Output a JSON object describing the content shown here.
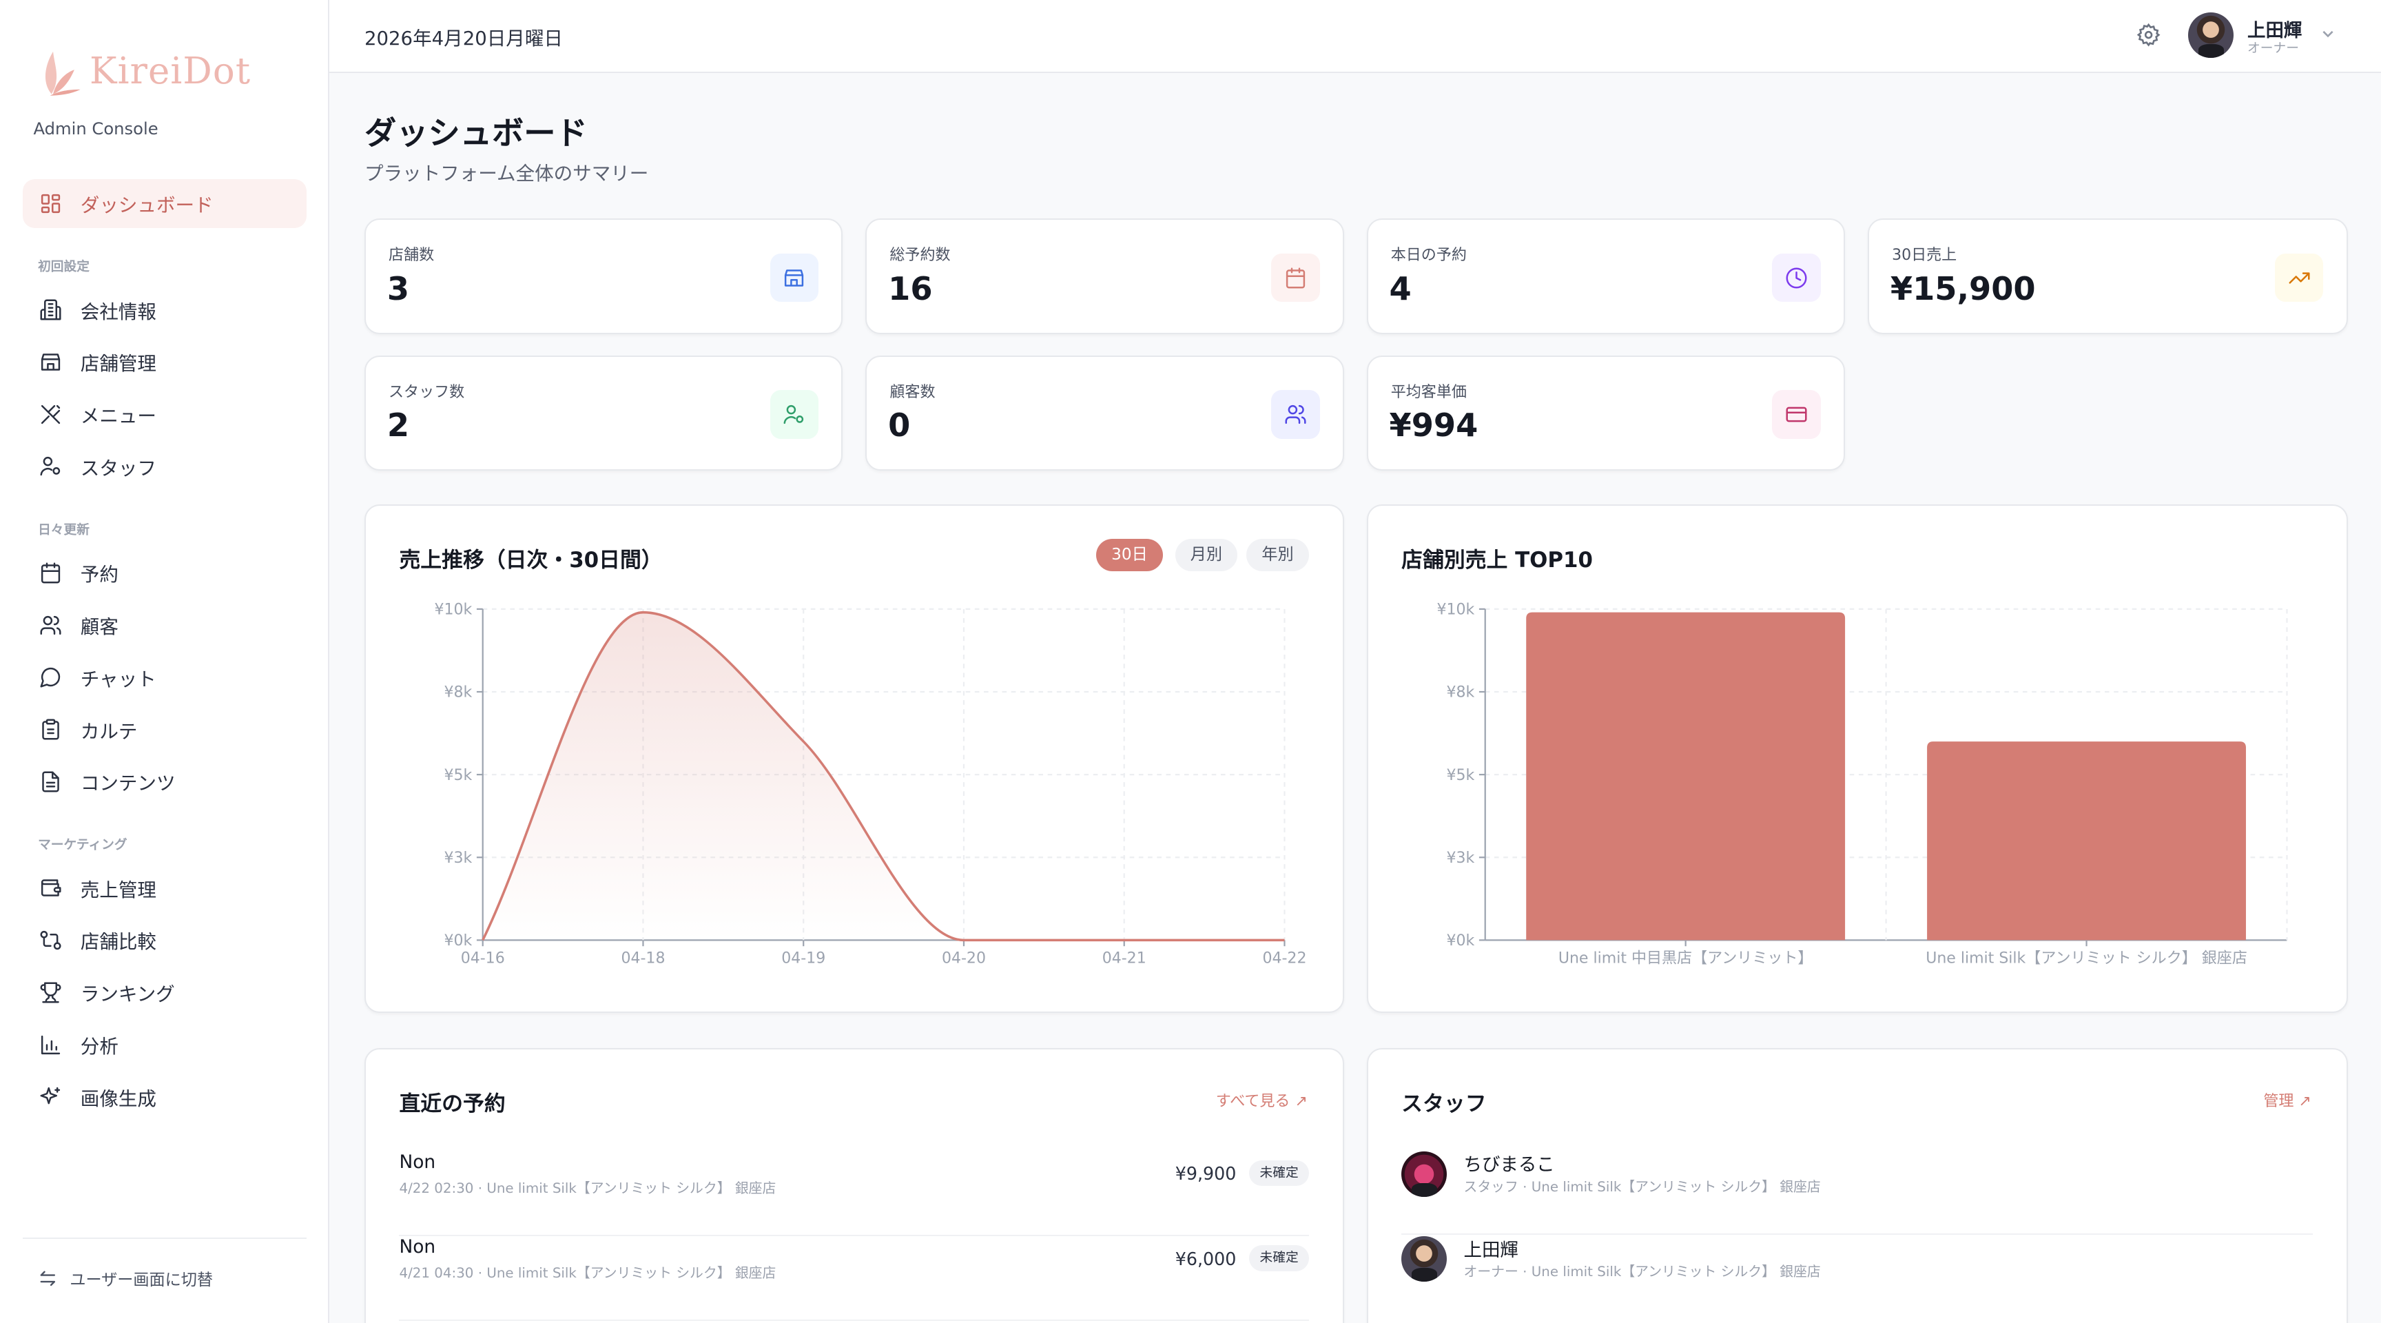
{
  "brand": {
    "name": "KireiDot",
    "subtitle": "Admin Console",
    "color": "#eeb7b0"
  },
  "accent": "#d47d74",
  "sidebar": {
    "items": [
      {
        "label": "ダッシュボード",
        "icon": "dashboard-grid-icon",
        "active": true
      }
    ],
    "sections": [
      {
        "title": "初回設定",
        "items": [
          {
            "label": "会社情報",
            "icon": "building-icon"
          },
          {
            "label": "店舗管理",
            "icon": "store-icon"
          },
          {
            "label": "メニュー",
            "icon": "utensils-icon"
          },
          {
            "label": "スタッフ",
            "icon": "user-cog-icon"
          }
        ]
      },
      {
        "title": "日々更新",
        "items": [
          {
            "label": "予約",
            "icon": "calendar-icon"
          },
          {
            "label": "顧客",
            "icon": "users-icon"
          },
          {
            "label": "チャット",
            "icon": "chat-icon"
          },
          {
            "label": "カルテ",
            "icon": "clipboard-icon"
          },
          {
            "label": "コンテンツ",
            "icon": "file-icon"
          }
        ]
      },
      {
        "title": "マーケティング",
        "items": [
          {
            "label": "売上管理",
            "icon": "wallet-icon"
          },
          {
            "label": "店舗比較",
            "icon": "compare-icon"
          },
          {
            "label": "ランキング",
            "icon": "trophy-icon"
          },
          {
            "label": "分析",
            "icon": "bar-chart-icon"
          },
          {
            "label": "画像生成",
            "icon": "sparkles-icon"
          }
        ]
      }
    ],
    "switch_label": "ユーザー画面に切替"
  },
  "header": {
    "date": "2026年4月20日月曜日",
    "user_name": "上田輝",
    "user_role": "オーナー"
  },
  "page": {
    "title": "ダッシュボード",
    "subtitle": "プラットフォーム全体のサマリー"
  },
  "stats": [
    {
      "label": "店舗数",
      "value": "3",
      "icon": "store-icon",
      "color": "#3b6fe0",
      "bg": "#eef4ff"
    },
    {
      "label": "総予約数",
      "value": "16",
      "icon": "calendar-icon",
      "color": "#d47d74",
      "bg": "#fdf2f1"
    },
    {
      "label": "本日の予約",
      "value": "4",
      "icon": "clock-icon",
      "color": "#7c3aed",
      "bg": "#f5f1ff"
    },
    {
      "label": "30日売上",
      "value": "¥15,900",
      "icon": "trending-up-icon",
      "color": "#d97706",
      "bg": "#fffbeb"
    },
    {
      "label": "スタッフ数",
      "value": "2",
      "icon": "user-cog-icon",
      "color": "#2f9e6a",
      "bg": "#ecfdf3"
    },
    {
      "label": "顧客数",
      "value": "0",
      "icon": "users-icon",
      "color": "#4f46e5",
      "bg": "#eef0ff"
    },
    {
      "label": "平均客単価",
      "value": "¥994",
      "icon": "credit-card-icon",
      "color": "#c0366b",
      "bg": "#fdf0f6"
    }
  ],
  "sales_panel": {
    "title": "売上推移（日次・30日間）",
    "ranges": [
      "30日",
      "月別",
      "年別"
    ],
    "selected": "30日"
  },
  "store_panel": {
    "title": "店舗別売上 TOP10"
  },
  "chart_data": [
    {
      "type": "area",
      "x": [
        "04-16",
        "04-18",
        "04-19",
        "04-20",
        "04-21",
        "04-22"
      ],
      "values": [
        0,
        9900,
        6000,
        0,
        0,
        0
      ],
      "ylim": [
        0,
        10000
      ],
      "yticks": [
        0,
        2500,
        5000,
        7500,
        10000
      ],
      "ytick_labels": [
        "¥0k",
        "¥3k",
        "¥5k",
        "¥8k",
        "¥10k"
      ],
      "grid": true,
      "color": "#d47d74"
    },
    {
      "type": "bar",
      "categories": [
        "Une limit 中目黒店【アンリミット】",
        "Une limit Silk【アンリミット シルク】 銀座店"
      ],
      "values": [
        9900,
        6000
      ],
      "ylim": [
        0,
        10000
      ],
      "yticks": [
        0,
        2500,
        5000,
        7500,
        10000
      ],
      "ytick_labels": [
        "¥0k",
        "¥3k",
        "¥5k",
        "¥8k",
        "¥10k"
      ],
      "grid": true,
      "color": "#d47d74"
    }
  ],
  "reservations": {
    "title": "直近の予約",
    "link": "すべて見る ↗",
    "items": [
      {
        "name": "Non",
        "detail": "4/22 02:30 · Une limit Silk【アンリミット シルク】 銀座店",
        "price": "¥9,900",
        "status": "未確定"
      },
      {
        "name": "Non",
        "detail": "4/21 04:30 · Une limit Silk【アンリミット シルク】 銀座店",
        "price": "¥6,000",
        "status": "未確定"
      }
    ]
  },
  "staff": {
    "title": "スタッフ",
    "link": "管理 ↗",
    "items": [
      {
        "name": "ちびまるこ",
        "detail": "スタッフ · Une limit Silk【アンリミット シルク】 銀座店"
      },
      {
        "name": "上田輝",
        "detail": "オーナー · Une limit Silk【アンリミット シルク】 銀座店"
      }
    ]
  }
}
